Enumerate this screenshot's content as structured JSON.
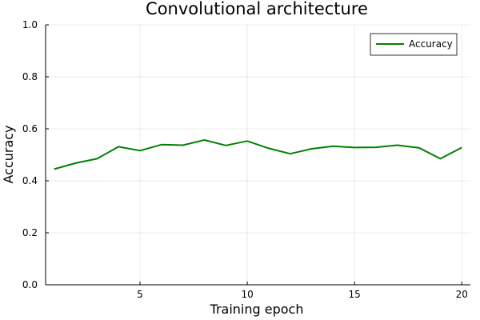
{
  "chart_data": {
    "type": "line",
    "title": "Convolutional architecture",
    "xlabel": "Training epoch",
    "ylabel": "Accuracy",
    "xlim": [
      0.6,
      20.4
    ],
    "ylim": [
      0,
      1
    ],
    "xticks": [
      5,
      10,
      15,
      20
    ],
    "xtick_labels": [
      "5",
      "10",
      "15",
      "20"
    ],
    "yticks": [
      0,
      0.2,
      0.4,
      0.6,
      0.8,
      1.0
    ],
    "ytick_labels": [
      "0.0",
      "0.2",
      "0.4",
      "0.6",
      "0.8",
      "1.0"
    ],
    "grid": true,
    "legend_position": "top-right",
    "series": [
      {
        "name": "Accuracy",
        "color": "#008000",
        "x": [
          1,
          2,
          3,
          4,
          5,
          6,
          7,
          8,
          9,
          10,
          11,
          12,
          13,
          14,
          15,
          16,
          17,
          18,
          19,
          20
        ],
        "y": [
          0.445,
          0.468,
          0.485,
          0.531,
          0.516,
          0.539,
          0.537,
          0.557,
          0.536,
          0.553,
          0.525,
          0.504,
          0.523,
          0.533,
          0.528,
          0.529,
          0.537,
          0.527,
          0.485,
          0.528
        ]
      }
    ]
  }
}
